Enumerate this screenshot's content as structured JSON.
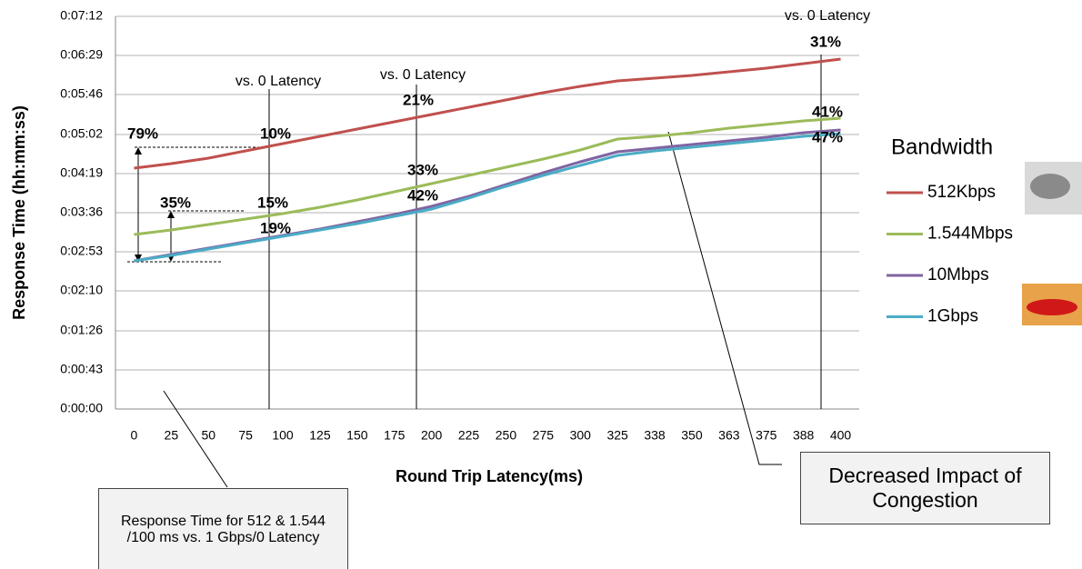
{
  "chart_data": {
    "type": "line",
    "y_label": "Response Time (hh:mm:ss)",
    "x_label": "Round Trip Latency(ms)",
    "legend_title": "Bandwidth",
    "categories": [
      "0",
      "25",
      "50",
      "75",
      "100",
      "125",
      "150",
      "175",
      "200",
      "225",
      "250",
      "275",
      "300",
      "325",
      "338",
      "350",
      "363",
      "375",
      "388",
      "400"
    ],
    "ylim": [
      0,
      432
    ],
    "yticks": [
      {
        "value": 0,
        "label": "0:00:00"
      },
      {
        "value": 43,
        "label": "0:00:43"
      },
      {
        "value": 86,
        "label": "0:01:26"
      },
      {
        "value": 130,
        "label": "0:02:10"
      },
      {
        "value": 173,
        "label": "0:02:53"
      },
      {
        "value": 216,
        "label": "0:03:36"
      },
      {
        "value": 259,
        "label": "0:04:19"
      },
      {
        "value": 302,
        "label": "0:05:02"
      },
      {
        "value": 346,
        "label": "0:05:46"
      },
      {
        "value": 389,
        "label": "0:06:29"
      },
      {
        "value": 432,
        "label": "0:07:12"
      }
    ],
    "grid": true,
    "series": [
      {
        "name": "512Kbps",
        "color": "#c0504d",
        "values": [
          265,
          270,
          276,
          284,
          292,
          300,
          308,
          316,
          324,
          332,
          340,
          348,
          355,
          361,
          364,
          367,
          371,
          375,
          380,
          385
        ]
      },
      {
        "name": "1.544Mbps",
        "color": "#9bbb59",
        "values": [
          192,
          197,
          203,
          209,
          215,
          222,
          230,
          239,
          248,
          257,
          266,
          275,
          285,
          297,
          300,
          304,
          309,
          313,
          317,
          320
        ]
      },
      {
        "name": "10Mbps",
        "color": "#8064a2",
        "values": [
          163,
          170,
          177,
          184,
          191,
          198,
          206,
          214,
          223,
          234,
          247,
          260,
          272,
          283,
          287,
          291,
          295,
          299,
          304,
          307
        ]
      },
      {
        "name": "1Gbps",
        "color": "#4bacc6",
        "values": [
          163,
          169,
          176,
          183,
          190,
          197,
          204,
          212,
          220,
          232,
          245,
          257,
          268,
          279,
          284,
          288,
          292,
          296,
          300,
          303
        ]
      }
    ],
    "annotations": [
      "vs. 0 Latency",
      "vs. 0 Latency",
      "vs. 0 Latency",
      "31%",
      "21%",
      "10%",
      "79%",
      "35%",
      "15%",
      "19%",
      "33%",
      "42%",
      "41%",
      "47%",
      "Response Time for 512 & 1.544 /100 ms vs. 1 Gbps/0 Latency",
      "Decreased Impact of Congestion"
    ]
  }
}
